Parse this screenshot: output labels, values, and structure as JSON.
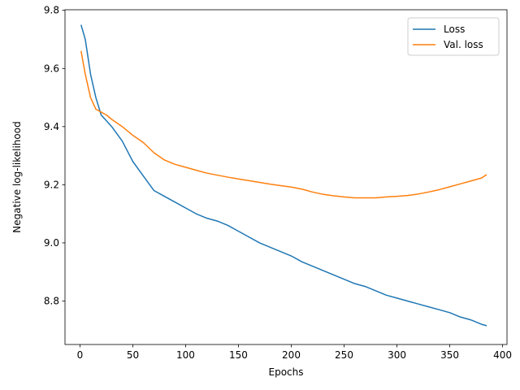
{
  "chart_data": {
    "type": "line",
    "title": "",
    "xlabel": "Epochs",
    "ylabel": "Negative log-likelihood",
    "xlim": [
      -14.2,
      404.2
    ],
    "ylim": [
      8.6504,
      9.802
    ],
    "xticks": [
      0,
      50,
      100,
      150,
      200,
      250,
      300,
      350,
      400
    ],
    "yticks": [
      8.8,
      9.0,
      9.2,
      9.4,
      9.6,
      9.8
    ],
    "xtick_labels": [
      "0",
      "50",
      "100",
      "150",
      "200",
      "250",
      "300",
      "350",
      "400"
    ],
    "ytick_labels": [
      "8.8",
      "9.0",
      "9.2",
      "9.4",
      "9.6",
      "9.8"
    ],
    "grid": false,
    "legend_position": "top-right",
    "series": [
      {
        "name": "Loss",
        "color": "#1f77b4",
        "x": [
          1,
          5,
          10,
          15,
          20,
          25,
          30,
          40,
          50,
          60,
          70,
          80,
          90,
          100,
          110,
          120,
          130,
          140,
          150,
          160,
          170,
          180,
          190,
          200,
          210,
          220,
          230,
          240,
          250,
          260,
          270,
          280,
          290,
          300,
          310,
          320,
          330,
          340,
          350,
          360,
          370,
          380,
          385
        ],
        "values": [
          9.75,
          9.7,
          9.58,
          9.5,
          9.44,
          9.42,
          9.4,
          9.35,
          9.28,
          9.23,
          9.18,
          9.16,
          9.14,
          9.12,
          9.1,
          9.085,
          9.075,
          9.06,
          9.04,
          9.02,
          9.0,
          8.985,
          8.97,
          8.955,
          8.935,
          8.92,
          8.905,
          8.89,
          8.875,
          8.86,
          8.85,
          8.835,
          8.82,
          8.81,
          8.8,
          8.79,
          8.78,
          8.77,
          8.76,
          8.745,
          8.735,
          8.72,
          8.715
        ]
      },
      {
        "name": "Val. loss",
        "color": "#ff7f0e",
        "x": [
          1,
          5,
          10,
          15,
          20,
          25,
          30,
          40,
          50,
          60,
          70,
          80,
          90,
          100,
          110,
          120,
          130,
          140,
          150,
          160,
          170,
          180,
          190,
          200,
          210,
          220,
          230,
          240,
          250,
          260,
          270,
          280,
          290,
          300,
          310,
          320,
          330,
          340,
          350,
          360,
          370,
          380,
          385
        ],
        "values": [
          9.66,
          9.58,
          9.5,
          9.46,
          9.45,
          9.44,
          9.425,
          9.4,
          9.37,
          9.345,
          9.31,
          9.285,
          9.27,
          9.26,
          9.25,
          9.24,
          9.233,
          9.226,
          9.22,
          9.214,
          9.208,
          9.202,
          9.197,
          9.192,
          9.185,
          9.175,
          9.167,
          9.162,
          9.158,
          9.155,
          9.155,
          9.155,
          9.158,
          9.16,
          9.163,
          9.168,
          9.175,
          9.183,
          9.193,
          9.203,
          9.213,
          9.223,
          9.235
        ]
      }
    ]
  }
}
